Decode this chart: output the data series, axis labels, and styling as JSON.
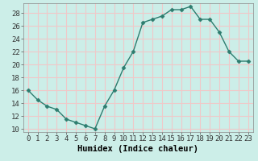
{
  "x": [
    0,
    1,
    2,
    3,
    4,
    5,
    6,
    7,
    8,
    9,
    10,
    11,
    12,
    13,
    14,
    15,
    16,
    17,
    18,
    19,
    20,
    21,
    22,
    23
  ],
  "y": [
    16,
    14.5,
    13.5,
    13,
    11.5,
    11,
    10.5,
    10,
    13.5,
    16,
    19.5,
    22,
    26.5,
    27,
    27.5,
    28.5,
    28.5,
    29,
    27,
    27,
    25,
    22,
    20.5,
    20.5
  ],
  "line_color": "#2d7d6f",
  "marker": "D",
  "marker_size": 2.5,
  "background_color": "#cceee8",
  "grid_color": "#f0c8c8",
  "xlabel": "Humidex (Indice chaleur)",
  "xlim": [
    -0.5,
    23.5
  ],
  "ylim": [
    9.5,
    29.5
  ],
  "yticks": [
    10,
    12,
    14,
    16,
    18,
    20,
    22,
    24,
    26,
    28
  ],
  "xticks": [
    0,
    1,
    2,
    3,
    4,
    5,
    6,
    7,
    8,
    9,
    10,
    11,
    12,
    13,
    14,
    15,
    16,
    17,
    18,
    19,
    20,
    21,
    22,
    23
  ],
  "xlabel_fontsize": 7.5,
  "tick_fontsize": 6.5
}
